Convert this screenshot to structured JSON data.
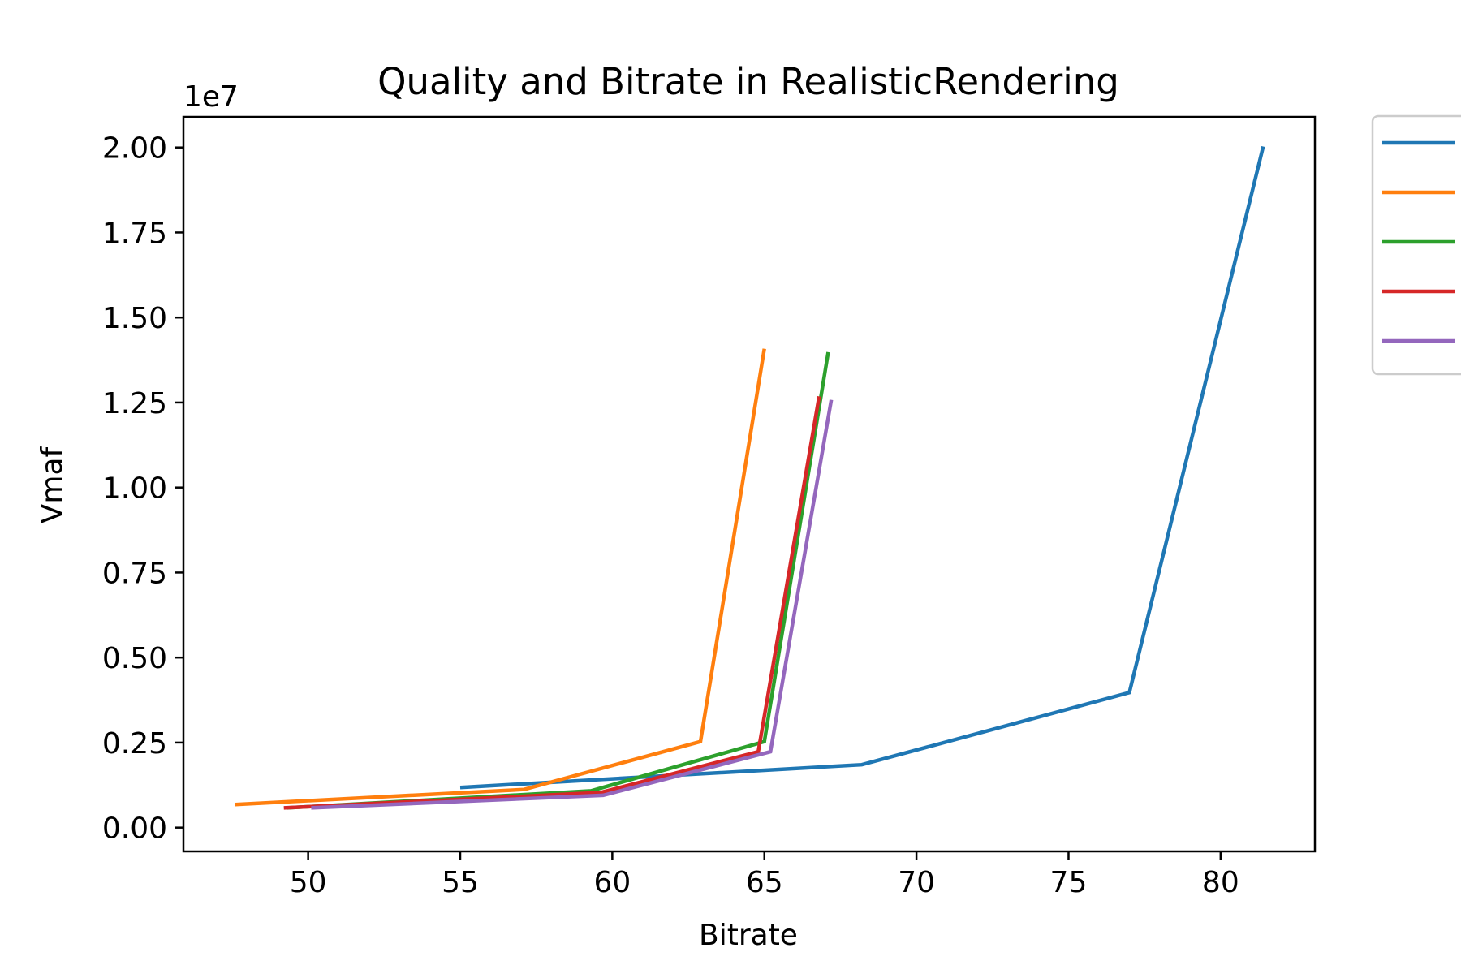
{
  "chart_data": {
    "type": "line",
    "title": "Quality and Bitrate in RealisticRendering",
    "xlabel": "Bitrate",
    "ylabel": "Vmaf",
    "y_offset_label": "1e7",
    "xlim": [
      45.9,
      83.1
    ],
    "ylim": [
      -0.07,
      2.09
    ],
    "y_scale_unit": "1e7",
    "xticks": [
      50,
      55,
      60,
      65,
      70,
      75,
      80
    ],
    "xtick_labels": [
      "50",
      "55",
      "60",
      "65",
      "70",
      "75",
      "80"
    ],
    "yticks": [
      0.0,
      0.25,
      0.5,
      0.75,
      1.0,
      1.25,
      1.5,
      1.75,
      2.0
    ],
    "ytick_labels": [
      "0.00",
      "0.25",
      "0.50",
      "0.75",
      "1.00",
      "1.25",
      "1.50",
      "1.75",
      "2.00"
    ],
    "grid": false,
    "legend": {
      "placement": "outside-top-right",
      "entries": [
        "",
        "",
        "",
        "",
        ""
      ]
    },
    "series": [
      {
        "color": "#1f77b4",
        "points": [
          [
            55.0,
            0.118
          ],
          [
            68.2,
            0.185
          ],
          [
            77.0,
            0.397
          ],
          [
            81.4,
            2.003
          ]
        ]
      },
      {
        "color": "#ff7f0e",
        "points": [
          [
            47.6,
            0.068
          ],
          [
            57.1,
            0.112
          ],
          [
            62.9,
            0.253
          ],
          [
            65.0,
            1.408
          ]
        ]
      },
      {
        "color": "#2ca02c",
        "points": [
          [
            49.3,
            0.058
          ],
          [
            59.3,
            0.108
          ],
          [
            65.0,
            0.253
          ],
          [
            67.1,
            1.398
          ]
        ]
      },
      {
        "color": "#d62728",
        "points": [
          [
            49.2,
            0.058
          ],
          [
            59.6,
            0.103
          ],
          [
            64.8,
            0.223
          ],
          [
            66.8,
            1.268
          ]
        ]
      },
      {
        "color": "#9467bd",
        "points": [
          [
            50.1,
            0.058
          ],
          [
            59.7,
            0.095
          ],
          [
            65.2,
            0.223
          ],
          [
            67.2,
            1.258
          ]
        ]
      }
    ]
  }
}
